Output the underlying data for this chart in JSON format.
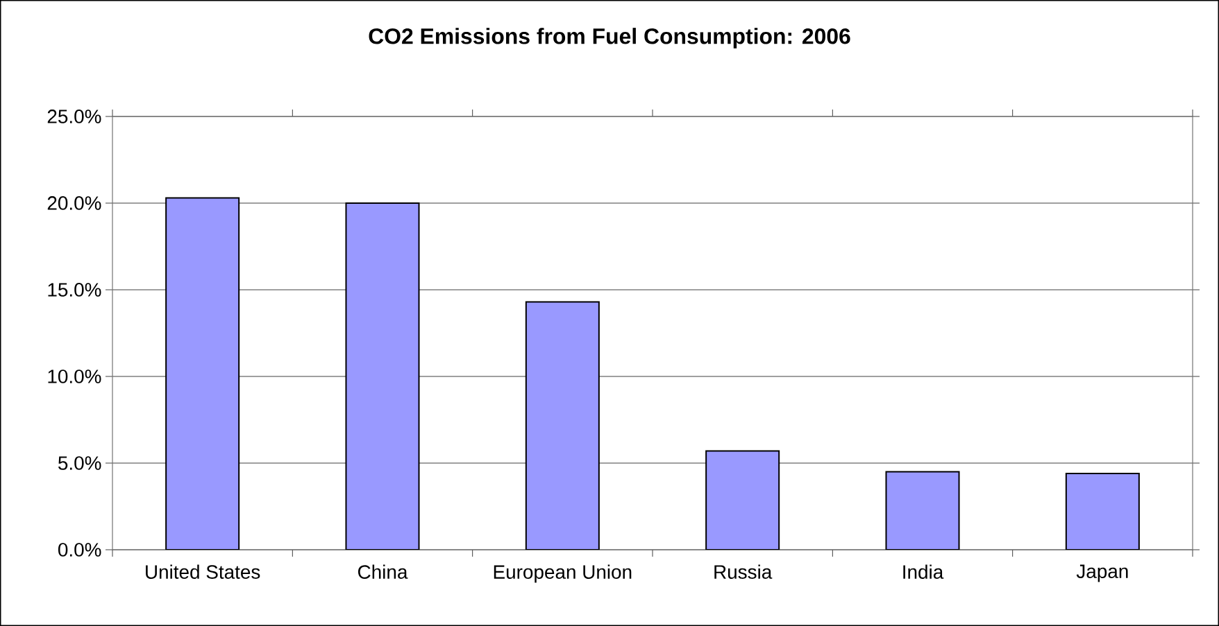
{
  "chart_data": {
    "type": "bar",
    "title": "CO2 Emissions from Fuel Consumption: 2006",
    "categories": [
      "United States",
      "China",
      "European Union",
      "Russia",
      "India",
      "Japan"
    ],
    "values": [
      20.3,
      20.0,
      14.3,
      5.7,
      4.5,
      4.4
    ],
    "color": "#9999ff",
    "ylim": [
      0,
      25
    ],
    "yticks": [
      {
        "value": 0,
        "label": "0.0%"
      },
      {
        "value": 5,
        "label": "5.0%"
      },
      {
        "value": 10,
        "label": "10.0%"
      },
      {
        "value": 15,
        "label": "15.0%"
      },
      {
        "value": 20,
        "label": "20.0%"
      },
      {
        "value": 25,
        "label": "25.0%"
      }
    ],
    "grid": "y"
  }
}
